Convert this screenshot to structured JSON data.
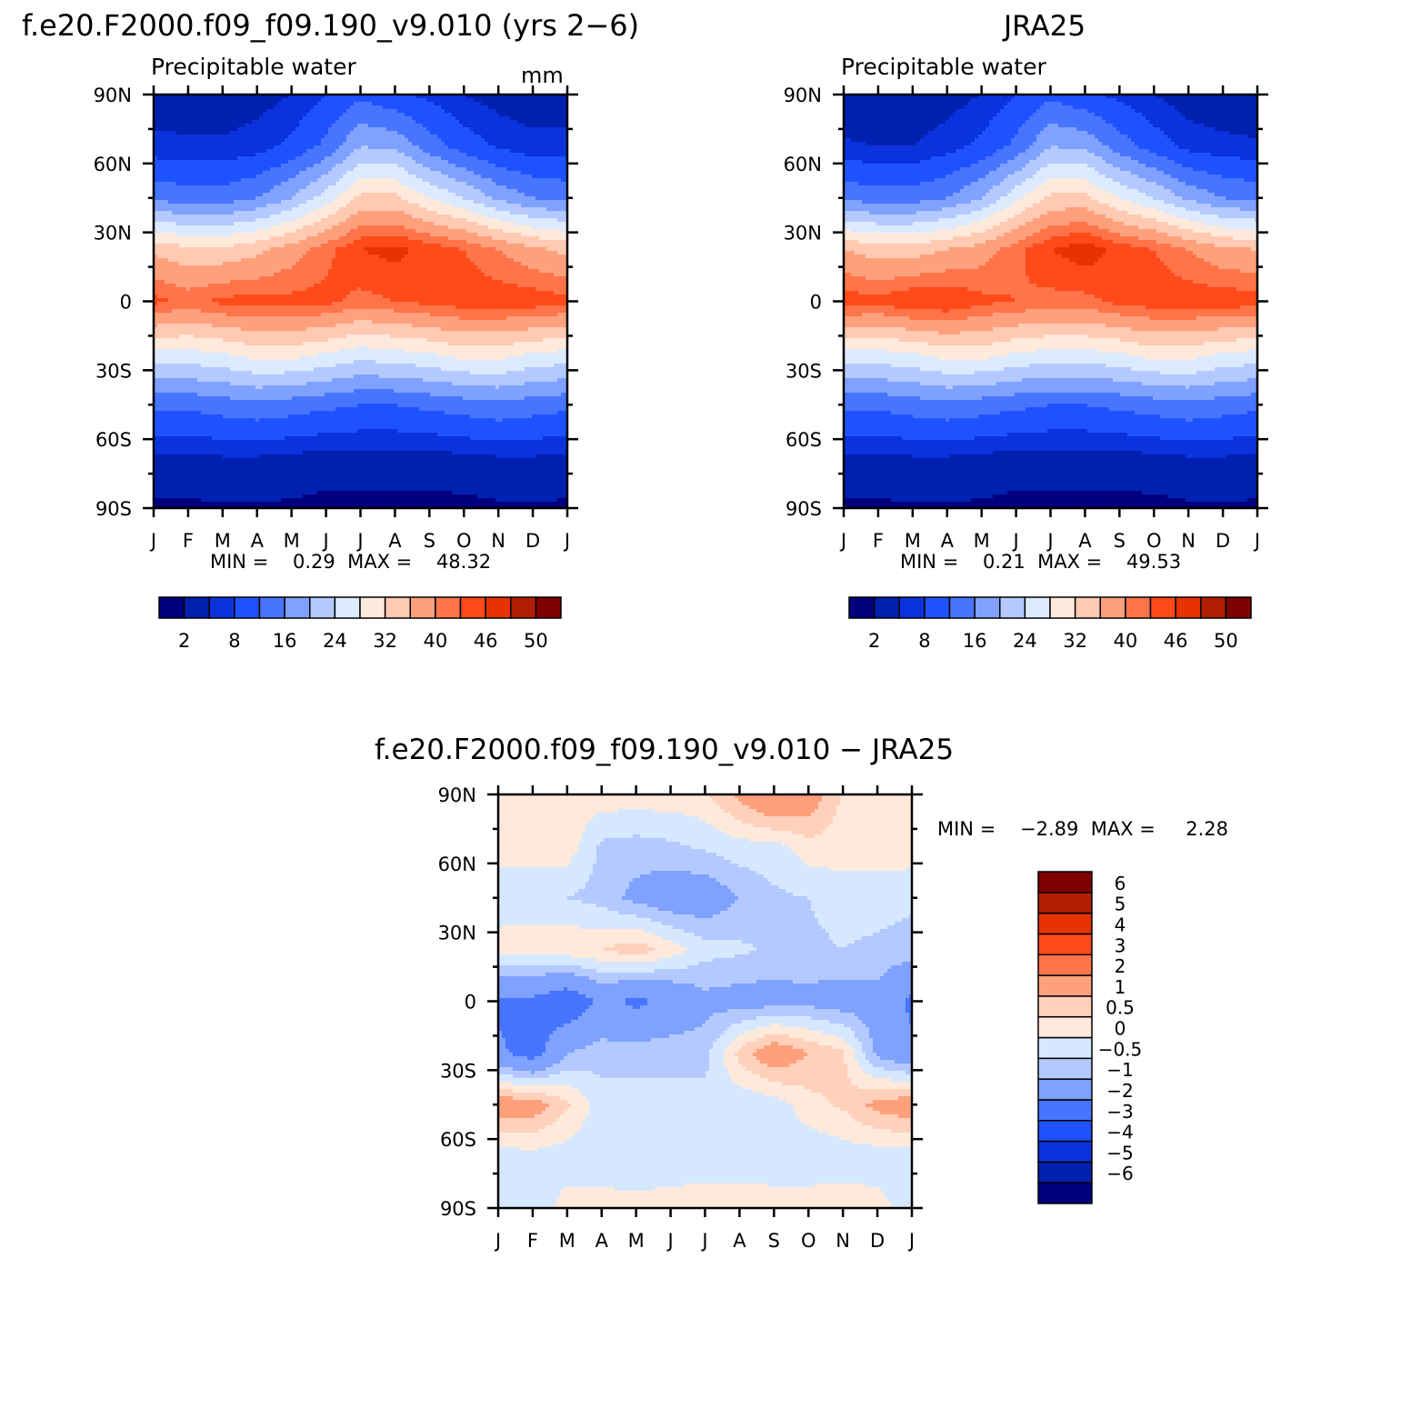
{
  "months": [
    "J",
    "F",
    "M",
    "A",
    "M",
    "J",
    "J",
    "A",
    "S",
    "O",
    "N",
    "D",
    "J"
  ],
  "lat_labels": [
    "90N",
    "60N",
    "30N",
    "0",
    "30S",
    "60S",
    "90S"
  ],
  "panels": [
    {
      "id": "model",
      "title": "f.e20.F2000.f09_f09.190_v9.010 (yrs 2−6)",
      "left_label": "Precipitable water",
      "right_label": "mm",
      "min_max": "MIN =    0.29  MAX =    48.32"
    },
    {
      "id": "obs",
      "title": "JRA25",
      "left_label": "Precipitable water",
      "right_label": "",
      "min_max": "MIN =    0.21  MAX =    49.53"
    }
  ],
  "diff_panel": {
    "title": "f.e20.F2000.f09_f09.190_v9.010 − JRA25",
    "min_max": "MIN =    −2.89  MAX =     2.28"
  },
  "colorbar_main": {
    "colors": [
      "#00007f",
      "#0020b0",
      "#0a33dd",
      "#1f52ff",
      "#4775ff",
      "#7fa1ff",
      "#b3c9ff",
      "#dbeaff",
      "#ffe9db",
      "#ffc9b2",
      "#ffa07d",
      "#ff7449",
      "#ff4a1a",
      "#e63300",
      "#b41e00",
      "#7f0000"
    ],
    "labels": [
      "2",
      "8",
      "16",
      "24",
      "32",
      "40",
      "46",
      "50"
    ]
  },
  "colorbar_diff": {
    "colors": [
      "#00007f",
      "#0020b0",
      "#0a33dd",
      "#1f52ff",
      "#4775ff",
      "#7fa1ff",
      "#b3c9ff",
      "#d6e8ff",
      "#ffe9db",
      "#ffd1bb",
      "#ffa07d",
      "#ff7449",
      "#ff4a1a",
      "#e63300",
      "#b41e00",
      "#7f0000"
    ],
    "labels": [
      "6",
      "5",
      "4",
      "3",
      "2",
      "1",
      "0.5",
      "0",
      "−0.5",
      "−1",
      "−2",
      "−3",
      "−4",
      "−5",
      "−6"
    ]
  },
  "chart_data": [
    {
      "type": "heatmap",
      "title": "f.e20.F2000.f09_f09.190_v9.010 (yrs 2−6)",
      "variable": "Precipitable water",
      "units": "mm",
      "x": [
        "J",
        "F",
        "M",
        "A",
        "M",
        "J",
        "J",
        "A",
        "S",
        "O",
        "N",
        "D",
        "J"
      ],
      "y": [
        "90S",
        "60S",
        "30S",
        "0",
        "30N",
        "60N",
        "90N"
      ],
      "levels": [
        2,
        5,
        8,
        12,
        16,
        20,
        24,
        28,
        32,
        36,
        40,
        43,
        46,
        48,
        50
      ],
      "values_by_month_lat_rows_90S_to_90N": [
        [
          1.5,
          4.5,
          13,
          27,
          44,
          35,
          15,
          6,
          3
        ],
        [
          1.5,
          4.5,
          13,
          27,
          42,
          33,
          14,
          5.5,
          3
        ],
        [
          1.5,
          5,
          14,
          28,
          44,
          33,
          14,
          5.5,
          3
        ],
        [
          1.5,
          5,
          15,
          30,
          44,
          35,
          16,
          6.5,
          3.5
        ],
        [
          1.5,
          4.5,
          14,
          30,
          44,
          38,
          20,
          9,
          5
        ],
        [
          1,
          4,
          13,
          28,
          44,
          42,
          26,
          13,
          8
        ],
        [
          1,
          4,
          12,
          26,
          42,
          46,
          33,
          20,
          11
        ],
        [
          1,
          4,
          12,
          27,
          43,
          47,
          33,
          19,
          9
        ],
        [
          1,
          4,
          13,
          28,
          44,
          45,
          28,
          14,
          7
        ],
        [
          1,
          4.5,
          14,
          30,
          45,
          43,
          24,
          10,
          5
        ],
        [
          1.5,
          5,
          15,
          30,
          45,
          40,
          19,
          7.5,
          3.5
        ],
        [
          1.5,
          5,
          14,
          28,
          45,
          37,
          16,
          6,
          3
        ],
        [
          1.5,
          4.5,
          13,
          27,
          44,
          35,
          15,
          6,
          3
        ]
      ],
      "min": 0.29,
      "max": 48.32
    },
    {
      "type": "heatmap",
      "title": "JRA25",
      "variable": "Precipitable water",
      "x": [
        "J",
        "F",
        "M",
        "A",
        "M",
        "J",
        "J",
        "A",
        "S",
        "O",
        "N",
        "D",
        "J"
      ],
      "y": [
        "90S",
        "60S",
        "30S",
        "0",
        "30N",
        "60N",
        "90N"
      ],
      "levels": [
        2,
        5,
        8,
        12,
        16,
        20,
        24,
        28,
        32,
        36,
        40,
        43,
        46,
        48,
        50
      ],
      "values_by_month_lat_rows_90S_to_90N": [
        [
          1.5,
          4.5,
          13,
          27,
          45,
          36,
          15,
          5.5,
          2
        ],
        [
          1.5,
          4.5,
          13,
          27,
          44,
          34,
          14,
          5,
          2
        ],
        [
          1.5,
          5,
          14,
          28,
          46,
          34,
          14,
          5,
          2.5
        ],
        [
          1.5,
          5,
          15,
          30,
          46,
          36,
          16,
          6.5,
          3.5
        ],
        [
          1.5,
          4.5,
          14,
          30,
          44,
          38,
          20,
          9,
          5
        ],
        [
          1,
          4,
          13,
          28,
          43,
          42,
          27,
          13,
          8
        ],
        [
          1,
          4,
          12,
          27,
          42,
          46,
          33,
          20,
          11
        ],
        [
          1,
          4,
          12,
          27,
          42,
          48,
          33,
          19,
          9
        ],
        [
          1,
          4,
          13,
          28,
          44,
          45,
          28,
          14,
          7
        ],
        [
          1,
          4.5,
          14,
          30,
          45,
          43,
          24,
          10,
          5
        ],
        [
          1.5,
          5,
          15,
          30,
          45,
          40,
          19,
          7,
          3
        ],
        [
          1.5,
          5,
          14,
          28,
          45,
          37,
          16,
          6,
          2.5
        ],
        [
          1.5,
          4.5,
          13,
          27,
          45,
          36,
          15,
          5.5,
          2
        ]
      ],
      "min": 0.21,
      "max": 49.53
    },
    {
      "type": "heatmap",
      "title": "f.e20.F2000.f09_f09.190_v9.010 − JRA25",
      "x": [
        "J",
        "F",
        "M",
        "A",
        "M",
        "J",
        "J",
        "A",
        "S",
        "O",
        "N",
        "D",
        "J"
      ],
      "y": [
        "90S",
        "60S",
        "30S",
        "0",
        "30N",
        "60N",
        "90N"
      ],
      "levels": [
        -6,
        -5,
        -4,
        -3,
        -2,
        -1,
        -0.5,
        0,
        0.5,
        1,
        2,
        3,
        4,
        5,
        6
      ],
      "values_by_month_lat_rows_90S_to_90N": [
        [
          -0.3,
          -0.3,
          1.5,
          -1.8,
          -2.2,
          0.3,
          -0.4,
          0.3,
          0.4
        ],
        [
          -0.3,
          -0.2,
          1.4,
          -2.5,
          -2.2,
          0.3,
          -0.3,
          0.2,
          0.3
        ],
        [
          0.2,
          -0.3,
          0.6,
          -1.0,
          -2.8,
          0.4,
          -0.5,
          0.3,
          0.3
        ],
        [
          0.2,
          -0.3,
          -0.3,
          -0.7,
          -1.8,
          0.5,
          -0.7,
          -0.6,
          0.3
        ],
        [
          0.2,
          -0.4,
          -0.3,
          -0.7,
          -2.2,
          0.8,
          -1.2,
          -0.7,
          0.3
        ],
        [
          0.2,
          -0.3,
          -0.4,
          -0.6,
          -1.8,
          0.3,
          -1.5,
          -0.6,
          0.3
        ],
        [
          0.3,
          -0.3,
          -0.3,
          -0.7,
          -1.2,
          -0.3,
          -1.5,
          -0.4,
          0.4
        ],
        [
          0.3,
          -0.3,
          -0.4,
          0.7,
          -1.3,
          -0.4,
          -1.0,
          -0.2,
          1.2
        ],
        [
          0.3,
          -0.4,
          -0.3,
          1.6,
          -1.3,
          -0.6,
          -0.6,
          -0.2,
          2.0
        ],
        [
          0.3,
          -0.4,
          0.3,
          1.0,
          -1.2,
          -0.6,
          -0.5,
          0.3,
          1.5
        ],
        [
          0.3,
          -0.3,
          0.6,
          0.6,
          -1.4,
          -0.5,
          -0.3,
          0.3,
          0.4
        ],
        [
          0.2,
          -0.3,
          1.2,
          -1.2,
          -1.3,
          -0.6,
          -0.3,
          0.3,
          0.3
        ],
        [
          -0.3,
          -0.3,
          1.5,
          -1.8,
          -2.2,
          -0.7,
          -0.4,
          0.3,
          0.4
        ]
      ],
      "min": -2.89,
      "max": 2.28
    }
  ]
}
